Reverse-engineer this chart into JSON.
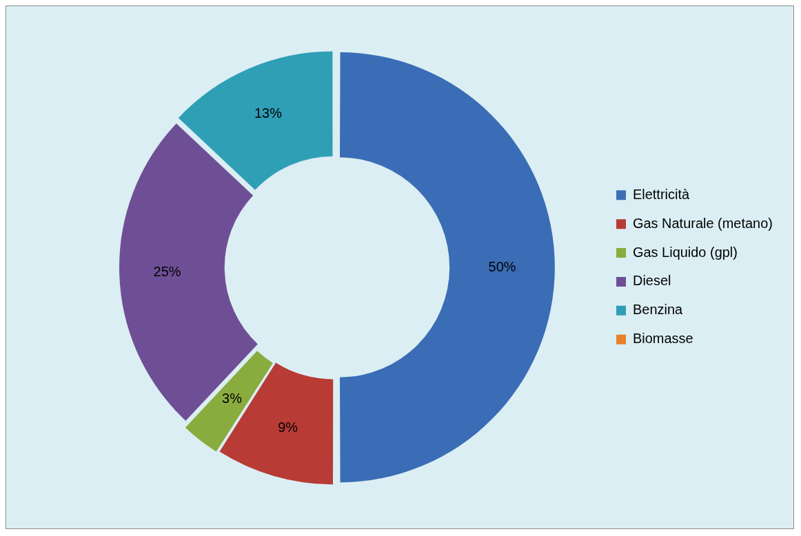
{
  "chart_data": {
    "type": "donut",
    "categories": [
      "Elettricità",
      "Gas Naturale (metano)",
      "Gas Liquido (gpl)",
      "Diesel",
      "Benzina",
      "Biomasse"
    ],
    "values": [
      50,
      9,
      3,
      25,
      13,
      0
    ],
    "colors": [
      "#3a6db5",
      "#b83b36",
      "#8aac3e",
      "#6e4f95",
      "#2f9fb6",
      "#e8802b"
    ],
    "value_labels": [
      "50%",
      "9%",
      "3%",
      "25%",
      "13%",
      null
    ],
    "legend": "right"
  }
}
